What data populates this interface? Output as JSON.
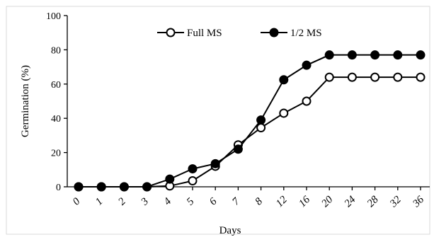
{
  "chart_data": {
    "type": "line",
    "x": [
      "0",
      "1",
      "2",
      "3",
      "4",
      "5",
      "6",
      "7",
      "8",
      "12",
      "16",
      "20",
      "24",
      "28",
      "32",
      "36"
    ],
    "xlabel": "Days",
    "ylabel": "Germination (%)",
    "ylim": [
      0,
      100
    ],
    "yticks": [
      0,
      20,
      40,
      60,
      80,
      100
    ],
    "grid": false,
    "legend_position": "top",
    "series": [
      {
        "name": "Full MS",
        "marker": "open-circle",
        "color": "#000000",
        "values": [
          0,
          0,
          0,
          0,
          0.5,
          3.5,
          12,
          24.5,
          34.5,
          43,
          50,
          64,
          64,
          64,
          64,
          64
        ]
      },
      {
        "name": "1/2 MS",
        "marker": "filled-circle",
        "color": "#000000",
        "values": [
          0,
          0,
          0,
          0,
          4.5,
          10.5,
          13.5,
          22,
          39,
          62.5,
          71,
          77,
          77,
          77,
          77,
          77
        ]
      }
    ]
  }
}
